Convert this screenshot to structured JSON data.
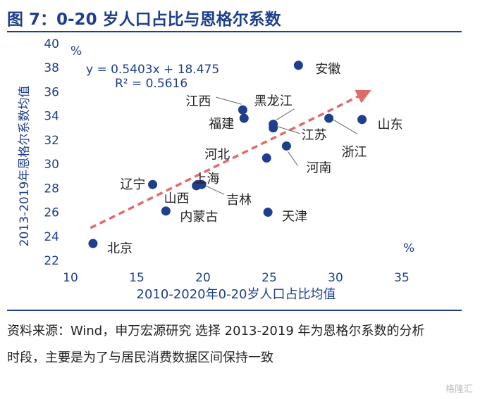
{
  "title": "图 7：0-20 岁人口占比与恩格尔系数",
  "source_text": "资料来源：Wind，申万宏源研究 选择 2013-2019 年为恩格尔系数的分析时段，主要是为了与居民消费数据区间保持一致",
  "watermark": "格隆汇",
  "colors": {
    "title": "#1f3f8c",
    "point": "#1f3f8c",
    "trend": "#e06b6b",
    "axis_text": "#1f3f8c"
  },
  "chart_data": {
    "type": "scatter",
    "title": "",
    "xlabel": "2010-2020年0-20岁人口占比均值",
    "ylabel": "2013-2019年恩格尔系数均值",
    "x_unit": "%",
    "y_unit": "%",
    "xlim": [
      10,
      35
    ],
    "ylim": [
      22,
      40
    ],
    "x_ticks": [
      10,
      15,
      20,
      25,
      30,
      35
    ],
    "y_ticks": [
      22,
      24,
      26,
      28,
      30,
      32,
      34,
      36,
      38,
      40
    ],
    "grid": false,
    "equation": "y = 0.5403x + 18.475",
    "r_squared": "R² = 0.5616",
    "trendline": {
      "slope": 0.5403,
      "intercept": 18.475,
      "x_range": [
        11.5,
        32.2
      ]
    },
    "points": [
      {
        "name": "安徽",
        "x": 27.2,
        "y": 38.2
      },
      {
        "name": "黑龙江",
        "x": 25.3,
        "y": 33.3
      },
      {
        "name": "江西",
        "x": 23.0,
        "y": 34.5
      },
      {
        "name": "福建",
        "x": 23.1,
        "y": 33.8
      },
      {
        "name": "江苏",
        "x": 25.3,
        "y": 33.0
      },
      {
        "name": "山东",
        "x": 32.0,
        "y": 33.7
      },
      {
        "name": "浙江",
        "x": 29.5,
        "y": 33.8
      },
      {
        "name": "河北",
        "x": 24.8,
        "y": 30.5
      },
      {
        "name": "河南",
        "x": 26.3,
        "y": 31.5
      },
      {
        "name": "上海",
        "x": 19.6,
        "y": 28.3
      },
      {
        "name": "辽宁",
        "x": 16.2,
        "y": 28.3
      },
      {
        "name": "山西",
        "x": 19.5,
        "y": 28.2
      },
      {
        "name": "吉林",
        "x": 19.9,
        "y": 28.3
      },
      {
        "name": "内蒙古",
        "x": 17.2,
        "y": 26.1
      },
      {
        "name": "天津",
        "x": 24.9,
        "y": 26.0
      },
      {
        "name": "北京",
        "x": 11.7,
        "y": 23.4
      }
    ]
  }
}
